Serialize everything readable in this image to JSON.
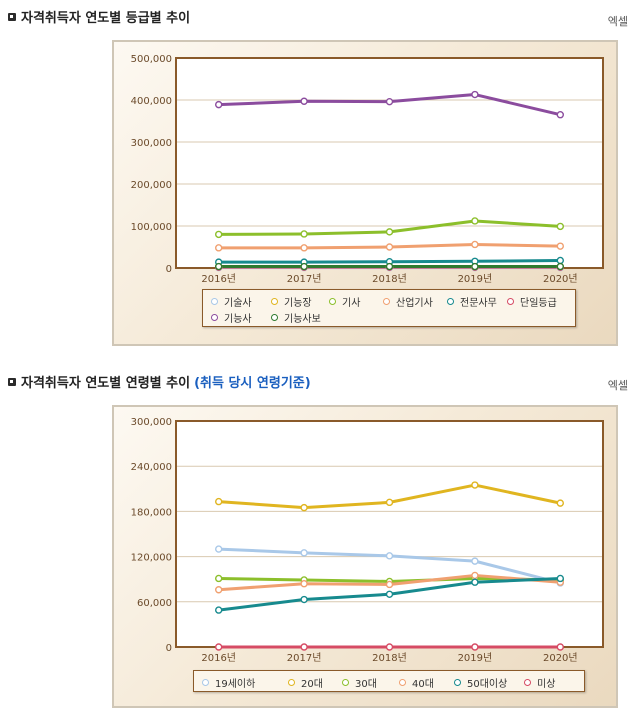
{
  "sections": [
    {
      "title": "자격취득자 연도별 등급별 추이",
      "note": "",
      "excel": "엑셀"
    },
    {
      "title": "자격취득자 연도별 연령별 추이",
      "note": "(취득 당시 연령기준)",
      "excel": "엑셀"
    }
  ],
  "chart_data": [
    {
      "type": "line",
      "categories": [
        "2016년",
        "2017년",
        "2018년",
        "2019년",
        "2020년"
      ],
      "ylim": [
        0,
        500000
      ],
      "yticks": [
        "0",
        "100,000",
        "200,000",
        "300,000",
        "400,000",
        "500,000"
      ],
      "grid": true,
      "legend_position": "bottom",
      "series": [
        {
          "name": "기술사",
          "color": "#a9c8e8",
          "values": [
            1000,
            1000,
            1000,
            1000,
            1000
          ]
        },
        {
          "name": "기능장",
          "color": "#e0b520",
          "values": [
            3000,
            3000,
            3000,
            3000,
            3000
          ]
        },
        {
          "name": "기사",
          "color": "#8cbf2b",
          "values": [
            80000,
            81000,
            86000,
            112000,
            99000
          ]
        },
        {
          "name": "산업기사",
          "color": "#f0a070",
          "values": [
            48000,
            48000,
            50000,
            56000,
            52000
          ]
        },
        {
          "name": "전문사무",
          "color": "#178a8e",
          "values": [
            14000,
            14000,
            15000,
            16000,
            18000
          ]
        },
        {
          "name": "단일등급",
          "color": "#d64b64",
          "values": [
            2000,
            2000,
            2000,
            2000,
            2000
          ]
        },
        {
          "name": "기능사",
          "color": "#8b4c9e",
          "values": [
            389000,
            397000,
            396000,
            413000,
            365000
          ]
        },
        {
          "name": "기능사보",
          "color": "#2f7a2f",
          "values": [
            3500,
            3500,
            3500,
            3500,
            3500
          ]
        }
      ]
    },
    {
      "type": "line",
      "categories": [
        "2016년",
        "2017년",
        "2018년",
        "2019년",
        "2020년"
      ],
      "ylim": [
        0,
        300000
      ],
      "yticks": [
        "0",
        "60,000",
        "120,000",
        "180,000",
        "240,000",
        "300,000"
      ],
      "grid": true,
      "legend_position": "bottom",
      "series": [
        {
          "name": "19세이하",
          "color": "#a9c8e8",
          "values": [
            130000,
            125000,
            121000,
            114000,
            85000
          ]
        },
        {
          "name": "20대",
          "color": "#e0b520",
          "values": [
            193000,
            185000,
            192000,
            215000,
            191000
          ]
        },
        {
          "name": "30대",
          "color": "#8cbf2b",
          "values": [
            91000,
            89000,
            87000,
            91000,
            89000
          ]
        },
        {
          "name": "40대",
          "color": "#f0a070",
          "values": [
            76000,
            84000,
            83000,
            95000,
            86000
          ]
        },
        {
          "name": "50대이상",
          "color": "#178a8e",
          "values": [
            49000,
            63000,
            70000,
            86000,
            91000
          ]
        },
        {
          "name": "미상",
          "color": "#d64b64",
          "values": [
            0,
            0,
            0,
            0,
            0
          ]
        }
      ]
    }
  ]
}
